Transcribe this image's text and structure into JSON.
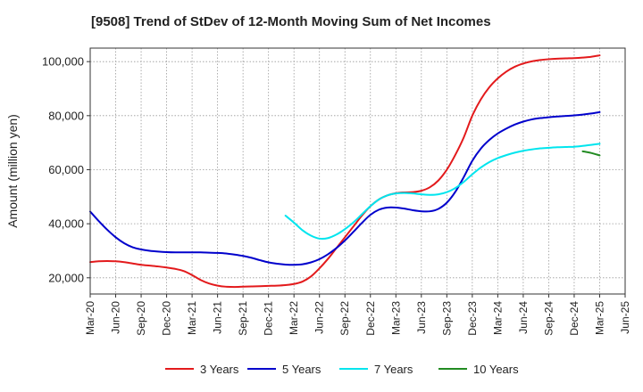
{
  "chart_data": {
    "type": "line",
    "title": "[9508]  Trend of StDev of 12-Month Moving Sum of Net Incomes",
    "ylabel": "Amount (million yen)",
    "xlabel": "",
    "ylim": [
      14000,
      105000
    ],
    "yticks": [
      20000,
      40000,
      60000,
      80000,
      100000
    ],
    "ytick_labels": [
      "20,000",
      "40,000",
      "60,000",
      "80,000",
      "100,000"
    ],
    "xtick_labels": [
      "Mar-20",
      "Jun-20",
      "Sep-20",
      "Dec-20",
      "Mar-21",
      "Jun-21",
      "Sep-21",
      "Dec-21",
      "Mar-22",
      "Jun-22",
      "Sep-22",
      "Dec-22",
      "Mar-23",
      "Jun-23",
      "Sep-23",
      "Dec-23",
      "Mar-24",
      "Jun-24",
      "Sep-24",
      "Dec-24",
      "Mar-25",
      "Jun-25"
    ],
    "grid": true,
    "legend_position": "bottom",
    "series": [
      {
        "name": "3 Years",
        "color": "#e31a1c",
        "points": [
          [
            "Mar-20",
            25800
          ],
          [
            "Apr-20",
            26100
          ],
          [
            "May-20",
            26200
          ],
          [
            "Jun-20",
            26100
          ],
          [
            "Jul-20",
            25800
          ],
          [
            "Aug-20",
            25300
          ],
          [
            "Sep-20",
            24800
          ],
          [
            "Oct-20",
            24500
          ],
          [
            "Nov-20",
            24200
          ],
          [
            "Dec-20",
            23800
          ],
          [
            "Jan-21",
            23300
          ],
          [
            "Feb-21",
            22500
          ],
          [
            "Mar-21",
            21000
          ],
          [
            "Apr-21",
            19200
          ],
          [
            "May-21",
            17900
          ],
          [
            "Jun-21",
            17100
          ],
          [
            "Jul-21",
            16700
          ],
          [
            "Aug-21",
            16600
          ],
          [
            "Sep-21",
            16700
          ],
          [
            "Oct-21",
            16800
          ],
          [
            "Nov-21",
            16900
          ],
          [
            "Dec-21",
            17000
          ],
          [
            "Jan-22",
            17100
          ],
          [
            "Feb-22",
            17300
          ],
          [
            "Mar-22",
            17700
          ],
          [
            "Apr-22",
            18600
          ],
          [
            "May-22",
            20500
          ],
          [
            "Jun-22",
            23500
          ],
          [
            "Jul-22",
            27000
          ],
          [
            "Aug-22",
            31000
          ],
          [
            "Sep-22",
            35000
          ],
          [
            "Oct-22",
            39000
          ],
          [
            "Nov-22",
            43000
          ],
          [
            "Dec-22",
            46500
          ],
          [
            "Jan-23",
            49000
          ],
          [
            "Feb-23",
            50500
          ],
          [
            "Mar-23",
            51300
          ],
          [
            "Apr-23",
            51600
          ],
          [
            "May-23",
            51700
          ],
          [
            "Jun-23",
            52200
          ],
          [
            "Jul-23",
            53500
          ],
          [
            "Aug-23",
            56000
          ],
          [
            "Sep-23",
            60000
          ],
          [
            "Oct-23",
            65500
          ],
          [
            "Nov-23",
            72000
          ],
          [
            "Dec-23",
            80000
          ],
          [
            "Jan-24",
            86000
          ],
          [
            "Feb-24",
            90500
          ],
          [
            "Mar-24",
            93800
          ],
          [
            "Apr-24",
            96300
          ],
          [
            "May-24",
            98100
          ],
          [
            "Jun-24",
            99300
          ],
          [
            "Jul-24",
            100100
          ],
          [
            "Aug-24",
            100600
          ],
          [
            "Sep-24",
            100900
          ],
          [
            "Oct-24",
            101100
          ],
          [
            "Nov-24",
            101200
          ],
          [
            "Dec-24",
            101300
          ],
          [
            "Jan-25",
            101500
          ],
          [
            "Feb-25",
            101800
          ],
          [
            "Mar-25",
            102300
          ]
        ]
      },
      {
        "name": "5 Years",
        "color": "#0000cc",
        "points": [
          [
            "Mar-20",
            44500
          ],
          [
            "Apr-20",
            41000
          ],
          [
            "May-20",
            37800
          ],
          [
            "Jun-20",
            35000
          ],
          [
            "Jul-20",
            32800
          ],
          [
            "Aug-20",
            31300
          ],
          [
            "Sep-20",
            30500
          ],
          [
            "Oct-20",
            30000
          ],
          [
            "Nov-20",
            29700
          ],
          [
            "Dec-20",
            29500
          ],
          [
            "Jan-21",
            29400
          ],
          [
            "Feb-21",
            29400
          ],
          [
            "Mar-21",
            29400
          ],
          [
            "Apr-21",
            29400
          ],
          [
            "May-21",
            29300
          ],
          [
            "Jun-21",
            29200
          ],
          [
            "Jul-21",
            29000
          ],
          [
            "Aug-21",
            28600
          ],
          [
            "Sep-21",
            28100
          ],
          [
            "Oct-21",
            27400
          ],
          [
            "Nov-21",
            26500
          ],
          [
            "Dec-21",
            25700
          ],
          [
            "Jan-22",
            25200
          ],
          [
            "Feb-22",
            24900
          ],
          [
            "Mar-22",
            24800
          ],
          [
            "Apr-22",
            25000
          ],
          [
            "May-22",
            25700
          ],
          [
            "Jun-22",
            26900
          ],
          [
            "Jul-22",
            28700
          ],
          [
            "Aug-22",
            31000
          ],
          [
            "Sep-22",
            33800
          ],
          [
            "Oct-22",
            37000
          ],
          [
            "Nov-22",
            40300
          ],
          [
            "Dec-22",
            43300
          ],
          [
            "Jan-23",
            45200
          ],
          [
            "Feb-23",
            46000
          ],
          [
            "Mar-23",
            46000
          ],
          [
            "Apr-23",
            45600
          ],
          [
            "May-23",
            45000
          ],
          [
            "Jun-23",
            44600
          ],
          [
            "Jul-23",
            44600
          ],
          [
            "Aug-23",
            45500
          ],
          [
            "Sep-23",
            47800
          ],
          [
            "Oct-23",
            51800
          ],
          [
            "Nov-23",
            57300
          ],
          [
            "Dec-23",
            63300
          ],
          [
            "Jan-24",
            67800
          ],
          [
            "Feb-24",
            71000
          ],
          [
            "Mar-24",
            73400
          ],
          [
            "Apr-24",
            75200
          ],
          [
            "May-24",
            76700
          ],
          [
            "Jun-24",
            77800
          ],
          [
            "Jul-24",
            78600
          ],
          [
            "Aug-24",
            79100
          ],
          [
            "Sep-24",
            79400
          ],
          [
            "Oct-24",
            79700
          ],
          [
            "Nov-24",
            79900
          ],
          [
            "Dec-24",
            80100
          ],
          [
            "Jan-25",
            80400
          ],
          [
            "Feb-25",
            80800
          ],
          [
            "Mar-25",
            81300
          ]
        ]
      },
      {
        "name": "7 Years",
        "color": "#00e5ee",
        "points": [
          [
            "Feb-22",
            43000
          ],
          [
            "Mar-22",
            40400
          ],
          [
            "Apr-22",
            37600
          ],
          [
            "May-22",
            35600
          ],
          [
            "Jun-22",
            34500
          ],
          [
            "Jul-22",
            34700
          ],
          [
            "Aug-22",
            36000
          ],
          [
            "Sep-22",
            38000
          ],
          [
            "Oct-22",
            40500
          ],
          [
            "Nov-22",
            43500
          ],
          [
            "Dec-22",
            46500
          ],
          [
            "Jan-23",
            49000
          ],
          [
            "Feb-23",
            50500
          ],
          [
            "Mar-23",
            51200
          ],
          [
            "Apr-23",
            51400
          ],
          [
            "May-23",
            51200
          ],
          [
            "Jun-23",
            50900
          ],
          [
            "Jul-23",
            50700
          ],
          [
            "Aug-23",
            50900
          ],
          [
            "Sep-23",
            51700
          ],
          [
            "Oct-23",
            53200
          ],
          [
            "Nov-23",
            55500
          ],
          [
            "Dec-23",
            58300
          ],
          [
            "Jan-24",
            60800
          ],
          [
            "Feb-24",
            62800
          ],
          [
            "Mar-24",
            64300
          ],
          [
            "Apr-24",
            65400
          ],
          [
            "May-24",
            66300
          ],
          [
            "Jun-24",
            67000
          ],
          [
            "Jul-24",
            67500
          ],
          [
            "Aug-24",
            67900
          ],
          [
            "Sep-24",
            68100
          ],
          [
            "Oct-24",
            68300
          ],
          [
            "Nov-24",
            68400
          ],
          [
            "Dec-24",
            68500
          ],
          [
            "Jan-25",
            68800
          ],
          [
            "Feb-25",
            69200
          ],
          [
            "Mar-25",
            69600
          ]
        ]
      },
      {
        "name": "10 Years",
        "color": "#228b22",
        "points": [
          [
            "Jan-25",
            66800
          ],
          [
            "Feb-25",
            66200
          ],
          [
            "Mar-25",
            65300
          ]
        ]
      }
    ]
  }
}
